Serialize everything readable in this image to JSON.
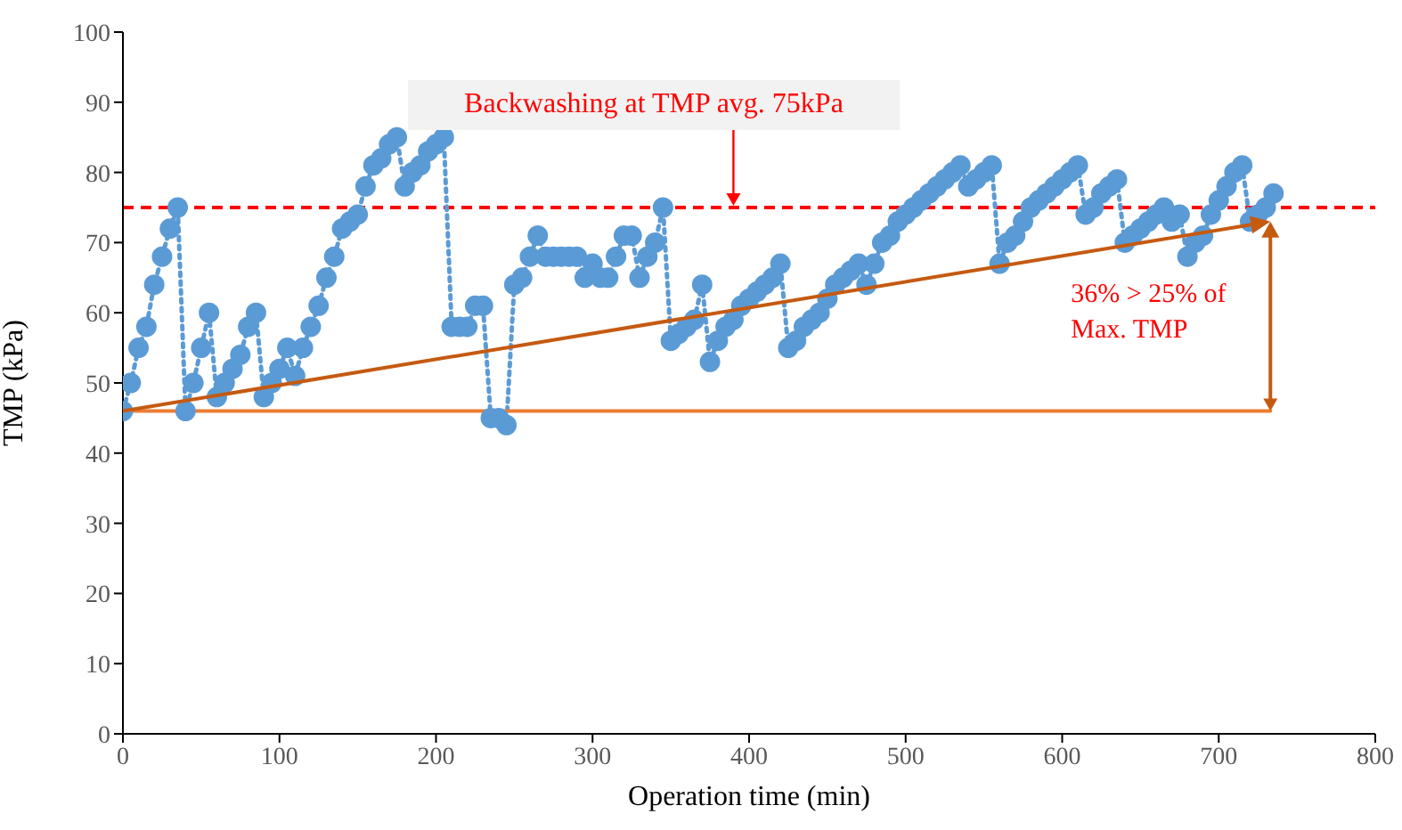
{
  "chart_data": {
    "type": "line",
    "xlabel": "Operation time (min)",
    "ylabel": "TMP (kPa)",
    "xlim": [
      0,
      800
    ],
    "xticks": [
      0,
      100,
      200,
      300,
      400,
      500,
      600,
      700,
      800
    ],
    "ylim": [
      0,
      100
    ],
    "yticks": [
      0,
      10,
      20,
      30,
      40,
      50,
      60,
      70,
      80,
      90,
      100
    ],
    "grid": false,
    "series": [
      {
        "color": "#5b9bd5",
        "marker": "circle",
        "line_style": "dotted",
        "x": [
          0,
          5,
          10,
          15,
          20,
          25,
          30,
          35,
          40,
          45,
          50,
          55,
          60,
          65,
          70,
          75,
          80,
          85,
          90,
          95,
          100,
          105,
          110,
          115,
          120,
          125,
          130,
          135,
          140,
          145,
          150,
          155,
          160,
          165,
          170,
          175,
          180,
          185,
          190,
          195,
          200,
          205,
          210,
          215,
          220,
          225,
          230,
          235,
          240,
          245,
          250,
          255,
          260,
          265,
          270,
          275,
          280,
          285,
          290,
          295,
          300,
          305,
          310,
          315,
          320,
          325,
          330,
          335,
          340,
          345,
          350,
          355,
          360,
          365,
          370,
          375,
          380,
          385,
          390,
          395,
          400,
          405,
          410,
          415,
          420,
          425,
          430,
          435,
          440,
          445,
          450,
          455,
          460,
          465,
          470,
          475,
          480,
          485,
          490,
          495,
          500,
          505,
          510,
          515,
          520,
          525,
          530,
          535,
          540,
          545,
          550,
          555,
          560,
          565,
          570,
          575,
          580,
          585,
          590,
          595,
          600,
          605,
          610,
          615,
          620,
          625,
          630,
          635,
          640,
          645,
          650,
          655,
          660,
          665,
          670,
          675,
          680,
          685,
          690,
          695,
          700,
          705,
          710,
          715,
          720,
          725,
          730,
          735
        ],
        "values": [
          46,
          50,
          55,
          58,
          64,
          68,
          72,
          75,
          46,
          50,
          55,
          60,
          48,
          50,
          52,
          54,
          58,
          60,
          48,
          50,
          52,
          55,
          51,
          55,
          58,
          61,
          65,
          68,
          72,
          73,
          74,
          78,
          81,
          82,
          84,
          85,
          78,
          80,
          81,
          83,
          84,
          85,
          58,
          58,
          58,
          61,
          61,
          45,
          45,
          44,
          64,
          65,
          68,
          71,
          68,
          68,
          68,
          68,
          68,
          65,
          67,
          65,
          65,
          68,
          71,
          71,
          65,
          68,
          70,
          75,
          56,
          57,
          58,
          59,
          64,
          53,
          56,
          58,
          59,
          61,
          62,
          63,
          64,
          65,
          67,
          55,
          56,
          58,
          59,
          60,
          62,
          64,
          65,
          66,
          67,
          64,
          67,
          70,
          71,
          73,
          74,
          75,
          76,
          77,
          78,
          79,
          80,
          81,
          78,
          79,
          80,
          81,
          67,
          70,
          71,
          73,
          75,
          76,
          77,
          78,
          79,
          80,
          81,
          74,
          75,
          77,
          78,
          79,
          70,
          71,
          72,
          73,
          74,
          75,
          73,
          74,
          68,
          70,
          71,
          74,
          76,
          78,
          80,
          81,
          73,
          74,
          75,
          77
        ]
      },
      {
        "type": "line",
        "color": "#ed7d31",
        "marker": "none",
        "line_style": "solid",
        "x": [
          0,
          733
        ],
        "values": [
          46,
          46
        ]
      }
    ],
    "ref_lines": [
      {
        "axis": "y",
        "value": 75,
        "label": "Backwashing at TMP avg. 75kPa",
        "color": "#ff0000",
        "line_style": "dashed"
      }
    ],
    "annotations": [
      {
        "text": "36% > 25% of Max. TMP",
        "x": 733,
        "y": 73
      }
    ]
  }
}
